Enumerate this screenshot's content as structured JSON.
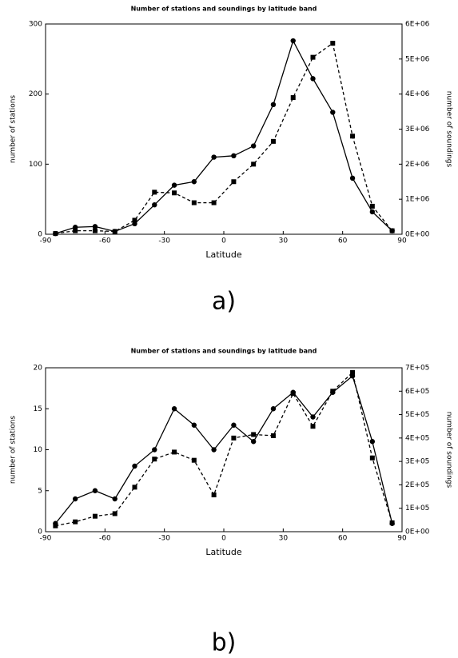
{
  "chart_data": [
    {
      "type": "line",
      "title": "Number of stations and soundings by latitude band",
      "caption": "a)",
      "xlabel": "Latitude",
      "ylabel": "number of stations",
      "y2label": "number of soundings",
      "x": [
        -85,
        -75,
        -65,
        -55,
        -45,
        -35,
        -25,
        -15,
        -5,
        5,
        15,
        25,
        35,
        45,
        55,
        65,
        75,
        85
      ],
      "xlim": [
        -90,
        90
      ],
      "xticks": [
        -90,
        -60,
        -30,
        0,
        30,
        60,
        90
      ],
      "ylim": [
        0,
        300
      ],
      "yticks": [
        0,
        100,
        200,
        300
      ],
      "y2lim": [
        0,
        6000000
      ],
      "y2ticks": [
        {
          "value": 0,
          "label": "0E+00"
        },
        {
          "value": 1000000,
          "label": "1E+06"
        },
        {
          "value": 2000000,
          "label": "2E+06"
        },
        {
          "value": 3000000,
          "label": "3E+06"
        },
        {
          "value": 4000000,
          "label": "4E+06"
        },
        {
          "value": 5000000,
          "label": "5E+06"
        },
        {
          "value": 6000000,
          "label": "6E+06"
        }
      ],
      "grid": false,
      "series": [
        {
          "color": "#000000",
          "linestyle": "solid",
          "marker": "circle",
          "values": [
            1,
            10,
            11,
            4,
            15,
            42,
            70,
            75,
            110,
            112,
            126,
            185,
            276,
            222,
            174,
            80,
            32,
            5
          ]
        },
        {
          "color": "#000000",
          "linestyle": "dashed",
          "marker": "square",
          "axis": "y2",
          "values": [
            20000,
            100000,
            100000,
            80000,
            400000,
            1200000,
            1180000,
            900000,
            900000,
            1500000,
            2000000,
            2650000,
            3900000,
            5050000,
            5450000,
            2800000,
            800000,
            100000
          ]
        }
      ]
    },
    {
      "type": "line",
      "title": "Number of stations and soundings by latitude band",
      "caption": "b)",
      "xlabel": "Latitude",
      "ylabel": "number of stations",
      "y2label": "number of soundings",
      "x": [
        -85,
        -75,
        -65,
        -55,
        -45,
        -35,
        -25,
        -15,
        -5,
        5,
        15,
        25,
        35,
        45,
        55,
        65,
        75,
        85
      ],
      "xlim": [
        -90,
        90
      ],
      "xticks": [
        -90,
        -60,
        -30,
        0,
        30,
        60,
        90
      ],
      "ylim": [
        0,
        20
      ],
      "yticks": [
        0,
        5,
        10,
        15,
        20
      ],
      "y2lim": [
        0,
        700000
      ],
      "y2ticks": [
        {
          "value": 0,
          "label": "0E+00"
        },
        {
          "value": 100000,
          "label": "1E+05"
        },
        {
          "value": 200000,
          "label": "2E+05"
        },
        {
          "value": 300000,
          "label": "3E+05"
        },
        {
          "value": 400000,
          "label": "4E+05"
        },
        {
          "value": 500000,
          "label": "5E+05"
        },
        {
          "value": 600000,
          "label": "6E+05"
        },
        {
          "value": 700000,
          "label": "7E+05"
        }
      ],
      "grid": false,
      "series": [
        {
          "color": "#000000",
          "linestyle": "solid",
          "marker": "circle",
          "values": [
            1,
            4,
            5,
            4,
            8,
            10,
            15,
            13,
            10,
            13,
            11,
            15,
            17,
            14,
            17,
            19,
            11,
            1
          ]
        },
        {
          "color": "#000000",
          "linestyle": "dashed",
          "marker": "square",
          "axis": "y2",
          "values": [
            25000,
            42000,
            66000,
            77000,
            190000,
            310000,
            340000,
            305000,
            157000,
            400000,
            415000,
            410000,
            590000,
            450000,
            600000,
            680000,
            315000,
            38000
          ]
        }
      ]
    }
  ]
}
